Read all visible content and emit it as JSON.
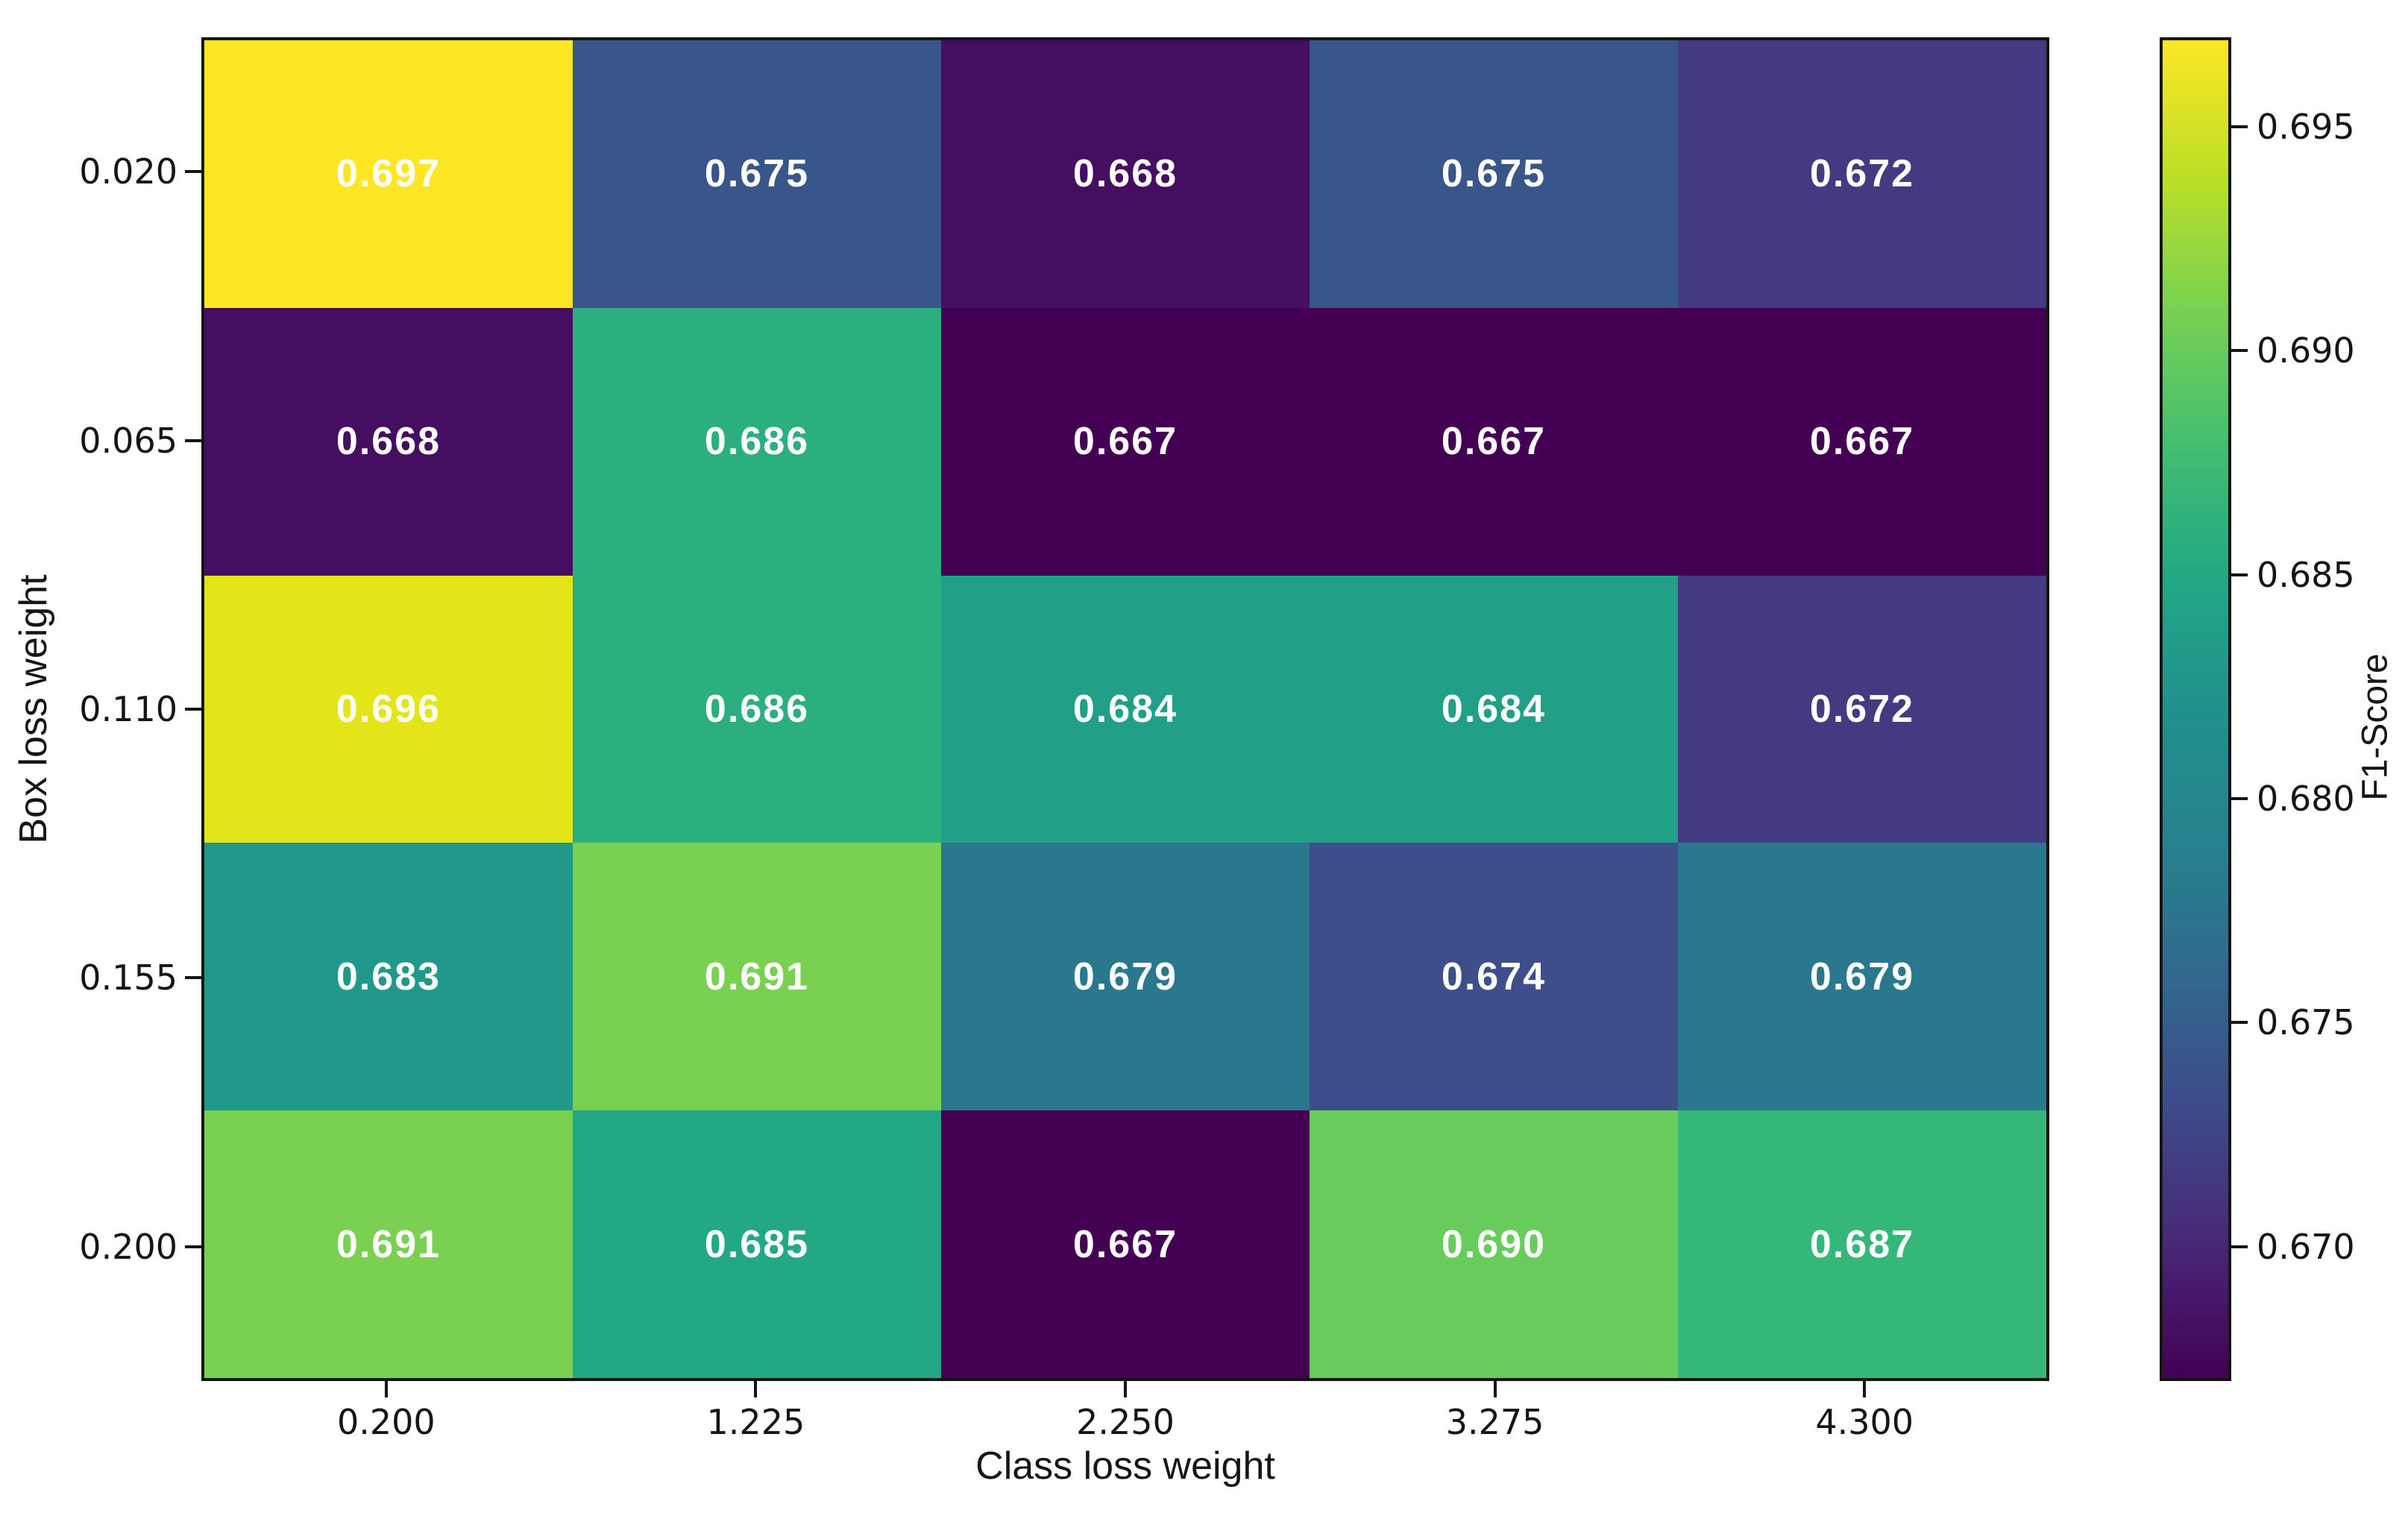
{
  "chart_data": {
    "type": "heatmap",
    "title": "",
    "xlabel": "Class loss weight",
    "ylabel": "Box loss weight",
    "x_categories": [
      "0.200",
      "1.225",
      "2.250",
      "3.275",
      "4.300"
    ],
    "y_categories": [
      "0.020",
      "0.065",
      "0.110",
      "0.155",
      "0.200"
    ],
    "values": [
      [
        0.697,
        0.675,
        0.668,
        0.675,
        0.672
      ],
      [
        0.668,
        0.686,
        0.667,
        0.667,
        0.667
      ],
      [
        0.696,
        0.686,
        0.684,
        0.684,
        0.672
      ],
      [
        0.683,
        0.691,
        0.679,
        0.674,
        0.679
      ],
      [
        0.691,
        0.685,
        0.667,
        0.69,
        0.687
      ]
    ],
    "cell_labels": [
      [
        "0.697",
        "0.675",
        "0.668",
        "0.675",
        "0.672"
      ],
      [
        "0.668",
        "0.686",
        "0.667",
        "0.667",
        "0.667"
      ],
      [
        "0.696",
        "0.686",
        "0.684",
        "0.684",
        "0.672"
      ],
      [
        "0.683",
        "0.691",
        "0.679",
        "0.674",
        "0.679"
      ],
      [
        "0.691",
        "0.685",
        "0.667",
        "0.690",
        "0.687"
      ]
    ],
    "cell_colors": [
      [
        "#fde725",
        "#39568b",
        "#450e60",
        "#39568b",
        "#433a82"
      ],
      [
        "#450e60",
        "#2caf7e",
        "#440154",
        "#440154",
        "#440154"
      ],
      [
        "#e4e519",
        "#2caf7e",
        "#22a087",
        "#22a087",
        "#433a82"
      ],
      [
        "#21998a",
        "#7ad151",
        "#2a788e",
        "#3e4e8a",
        "#2a788e"
      ],
      [
        "#7ad151",
        "#22a884",
        "#440154",
        "#67cc5c",
        "#35b779"
      ]
    ],
    "annotation_text_color": "#ffffff",
    "colormap": "viridis",
    "vmin": 0.667,
    "vmax": 0.697,
    "grid": false,
    "background": "#ffffff",
    "axis_color": "#151515",
    "colorbar": {
      "label": "F1-Score",
      "tick_labels": [
        "0.695",
        "0.690",
        "0.685",
        "0.680",
        "0.675",
        "0.670"
      ],
      "tick_values": [
        0.695,
        0.69,
        0.685,
        0.68,
        0.675,
        0.67
      ],
      "gradient_stops_bottom_to_top": [
        "#440154",
        "#482878",
        "#3e4a89",
        "#31688e",
        "#26828e",
        "#21918c",
        "#22a884",
        "#44bf70",
        "#7ad151",
        "#bddf26",
        "#fde725"
      ]
    }
  }
}
